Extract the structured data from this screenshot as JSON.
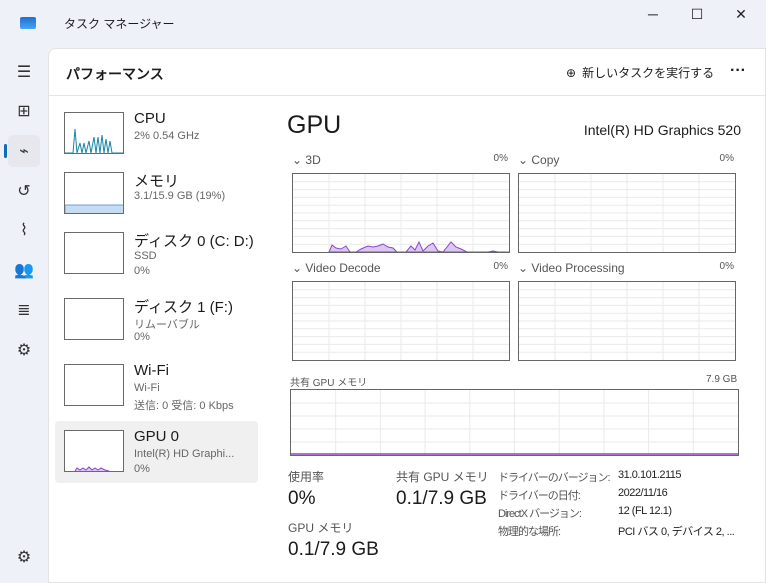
{
  "window": {
    "title": "タスク マネージャー",
    "minimize": "─",
    "maximize": "☐",
    "close": "✕"
  },
  "header": {
    "title": "パフォーマンス",
    "new_task": "新しいタスクを実行する",
    "more": "···"
  },
  "rail": [
    "menu-icon",
    "processes-icon",
    "performance-icon",
    "history-icon",
    "startup-icon",
    "users-icon",
    "details-icon",
    "services-icon",
    "settings-icon"
  ],
  "devices": [
    {
      "name": "CPU",
      "sub1": "2%  0.54 GHz",
      "sub2": "",
      "sub3": ""
    },
    {
      "name": "メモリ",
      "sub1": "3.1/15.9 GB (19%)",
      "sub2": "",
      "sub3": ""
    },
    {
      "name": "ディスク 0 (C: D:)",
      "sub1": "SSD",
      "sub2": "0%",
      "sub3": ""
    },
    {
      "name": "ディスク 1 (F:)",
      "sub1": "リムーバブル",
      "sub2": "0%",
      "sub3": ""
    },
    {
      "name": "Wi-Fi",
      "sub1": "Wi-Fi",
      "sub2": "送信: 0 受信: 0 Kbps",
      "sub3": ""
    },
    {
      "name": "GPU 0",
      "sub1": "Intel(R) HD Graphi...",
      "sub2": "0%",
      "sub3": ""
    }
  ],
  "detail": {
    "title": "GPU",
    "adapter": "Intel(R) HD Graphics 520",
    "engines": [
      {
        "label": "3D",
        "value": "0%"
      },
      {
        "label": "Copy",
        "value": "0%"
      },
      {
        "label": "Video Decode",
        "value": "0%"
      },
      {
        "label": "Video Processing",
        "value": "0%"
      }
    ],
    "shared": {
      "label": "共有 GPU メモリ",
      "value": "7.9 GB"
    },
    "stats": {
      "usage_label": "使用率",
      "usage": "0%",
      "shared_label": "共有 GPU メモリ",
      "shared": "0.1/7.9 GB",
      "gpumem_label": "GPU メモリ",
      "gpumem": "0.1/7.9 GB"
    },
    "info": [
      {
        "k": "ドライバーのバージョン:",
        "v": "31.0.101.2115"
      },
      {
        "k": "ドライバーの日付:",
        "v": "2022/11/16"
      },
      {
        "k": "DirectX バージョン:",
        "v": "12 (FL 12.1)"
      },
      {
        "k": "物理的な場所:",
        "v": "PCI バス 0, デバイス 2, ..."
      }
    ]
  },
  "colors": {
    "gpu": "#8e44c9",
    "gpu_fill": "#dcc6f2",
    "cpu": "#1784a8",
    "mem": "#c5dcf3"
  }
}
